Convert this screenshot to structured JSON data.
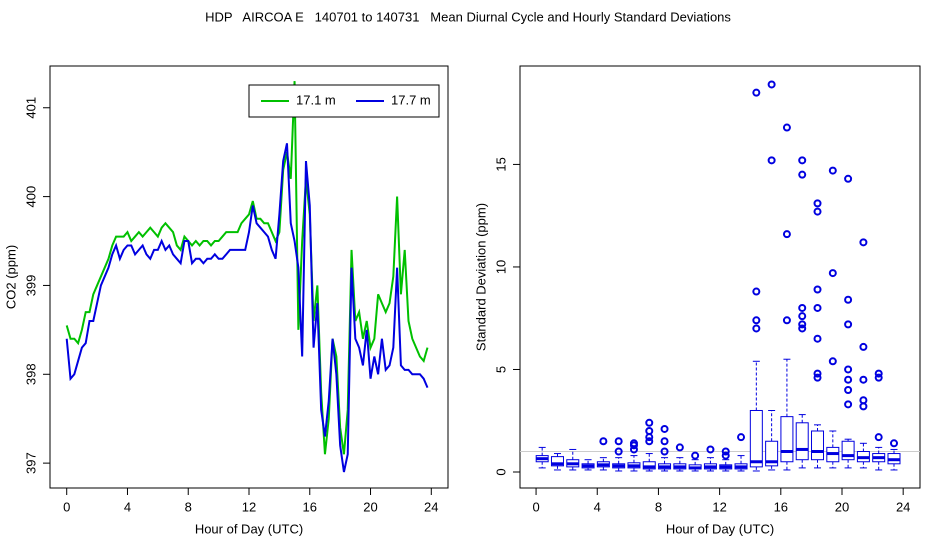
{
  "title": "HDP   AIRCOA E   140701 to 140731   Mean Diurnal Cycle and Hourly Standard Deviations",
  "chart_data": [
    {
      "type": "line",
      "xlabel": "Hour of Day (UTC)",
      "ylabel": "CO2 (ppm)",
      "xlim": [
        -1.1,
        25.1
      ],
      "ylim": [
        396.72,
        401.47
      ],
      "xticks": [
        0,
        4,
        8,
        12,
        16,
        20,
        24
      ],
      "yticks": [
        397,
        398,
        399,
        400,
        401
      ],
      "legend": "top-right",
      "x": [
        0,
        0.25,
        0.5,
        0.75,
        1,
        1.25,
        1.5,
        1.75,
        2,
        2.25,
        2.5,
        2.75,
        3,
        3.25,
        3.5,
        3.75,
        4,
        4.25,
        4.5,
        4.75,
        5,
        5.25,
        5.5,
        5.75,
        6,
        6.25,
        6.5,
        6.75,
        7,
        7.25,
        7.5,
        7.75,
        8,
        8.25,
        8.5,
        8.75,
        9,
        9.25,
        9.5,
        9.75,
        10,
        10.25,
        10.5,
        10.75,
        11,
        11.25,
        11.5,
        11.75,
        12,
        12.25,
        12.5,
        12.75,
        13,
        13.25,
        13.5,
        13.75,
        14,
        14.25,
        14.5,
        14.75,
        15,
        15.25,
        15.5,
        15.75,
        16,
        16.25,
        16.5,
        16.75,
        17,
        17.25,
        17.5,
        17.75,
        18,
        18.25,
        18.5,
        18.75,
        19,
        19.25,
        19.5,
        19.75,
        20,
        20.25,
        20.5,
        20.75,
        21,
        21.25,
        21.5,
        21.75,
        22,
        22.25,
        22.5,
        22.75,
        23,
        23.25,
        23.5,
        23.75
      ],
      "series": [
        {
          "name": "17.1 m",
          "color": "#00c000",
          "values": [
            398.55,
            398.4,
            398.4,
            398.35,
            398.5,
            398.7,
            398.7,
            398.9,
            399.0,
            399.1,
            399.2,
            399.3,
            399.45,
            399.55,
            399.55,
            399.55,
            399.6,
            399.5,
            399.55,
            399.6,
            399.55,
            399.6,
            399.65,
            399.6,
            399.55,
            399.65,
            399.7,
            399.65,
            399.6,
            399.45,
            399.4,
            399.55,
            399.5,
            399.45,
            399.5,
            399.45,
            399.5,
            399.5,
            399.45,
            399.5,
            399.5,
            399.55,
            399.6,
            399.6,
            399.6,
            399.6,
            399.7,
            399.75,
            399.8,
            399.95,
            399.75,
            399.75,
            399.7,
            399.7,
            399.6,
            399.5,
            399.6,
            400.3,
            400.5,
            400.2,
            401.3,
            398.5,
            399.5,
            400.2,
            399.8,
            398.6,
            399.0,
            397.8,
            397.1,
            397.5,
            398.4,
            398.2,
            397.4,
            397.1,
            397.6,
            399.4,
            398.6,
            398.7,
            398.4,
            398.6,
            398.3,
            398.4,
            398.9,
            398.8,
            398.7,
            398.8,
            399.1,
            400.0,
            398.9,
            399.4,
            398.6,
            398.4,
            398.3,
            398.2,
            398.15,
            398.3
          ]
        },
        {
          "name": "17.7 m",
          "color": "#0000e0",
          "values": [
            398.4,
            397.95,
            398.0,
            398.15,
            398.3,
            398.35,
            398.6,
            398.6,
            398.8,
            399.0,
            399.1,
            399.2,
            399.35,
            399.45,
            399.3,
            399.4,
            399.45,
            399.45,
            399.35,
            399.4,
            399.45,
            399.35,
            399.3,
            399.4,
            399.4,
            399.5,
            399.4,
            399.45,
            399.35,
            399.3,
            399.25,
            399.5,
            399.5,
            399.25,
            399.3,
            399.3,
            399.25,
            399.3,
            399.3,
            399.35,
            399.3,
            399.3,
            399.35,
            399.4,
            399.4,
            399.4,
            399.4,
            399.4,
            399.6,
            399.9,
            399.7,
            399.65,
            399.6,
            399.55,
            399.4,
            399.3,
            399.8,
            400.4,
            400.6,
            399.7,
            399.5,
            399.2,
            398.2,
            400.4,
            399.9,
            398.3,
            398.8,
            397.6,
            397.3,
            397.7,
            398.4,
            398.0,
            397.2,
            396.9,
            397.1,
            399.2,
            398.4,
            398.3,
            398.1,
            398.5,
            397.95,
            398.2,
            398.0,
            398.4,
            398.05,
            398.1,
            398.3,
            399.2,
            398.1,
            398.05,
            398.05,
            398.0,
            398.0,
            398.0,
            397.95,
            397.85
          ]
        }
      ]
    },
    {
      "type": "box",
      "xlabel": "Hour of Day (UTC)",
      "ylabel": "Standard Deviation (ppm)",
      "xlim": [
        -1.05,
        25.1
      ],
      "ylim": [
        -0.78,
        19.8
      ],
      "xticks": [
        0,
        4,
        8,
        12,
        16,
        20,
        24
      ],
      "yticks": [
        0,
        5,
        10,
        15
      ],
      "color": "#0000e0",
      "hline": 1,
      "hline_color": "#cccccc",
      "boxes": [
        {
          "x": 0.4,
          "whislo": 0.2,
          "q1": 0.5,
          "med": 0.65,
          "q3": 0.8,
          "whishi": 1.2,
          "outliers": []
        },
        {
          "x": 1.4,
          "whislo": 0.1,
          "q1": 0.3,
          "med": 0.4,
          "q3": 0.75,
          "whishi": 0.9,
          "outliers": []
        },
        {
          "x": 2.4,
          "whislo": 0.1,
          "q1": 0.25,
          "med": 0.4,
          "q3": 0.6,
          "whishi": 1.1,
          "outliers": []
        },
        {
          "x": 3.4,
          "whislo": 0.1,
          "q1": 0.2,
          "med": 0.3,
          "q3": 0.4,
          "whishi": 0.6,
          "outliers": []
        },
        {
          "x": 4.4,
          "whislo": 0.1,
          "q1": 0.25,
          "med": 0.35,
          "q3": 0.5,
          "whishi": 0.7,
          "outliers": [
            1.5
          ]
        },
        {
          "x": 5.4,
          "whislo": 0.05,
          "q1": 0.2,
          "med": 0.3,
          "q3": 0.4,
          "whishi": 0.7,
          "outliers": [
            1.0,
            1.5
          ]
        },
        {
          "x": 6.4,
          "whislo": 0.05,
          "q1": 0.2,
          "med": 0.3,
          "q3": 0.45,
          "whishi": 0.8,
          "outliers": [
            1.1,
            1.3,
            1.4
          ]
        },
        {
          "x": 7.4,
          "whislo": 0.05,
          "q1": 0.15,
          "med": 0.25,
          "q3": 0.5,
          "whishi": 0.9,
          "outliers": [
            1.5,
            1.7,
            2.0,
            2.4
          ]
        },
        {
          "x": 8.4,
          "whislo": 0.05,
          "q1": 0.15,
          "med": 0.25,
          "q3": 0.4,
          "whishi": 0.7,
          "outliers": [
            1.0,
            1.5,
            2.1
          ]
        },
        {
          "x": 9.4,
          "whislo": 0.05,
          "q1": 0.15,
          "med": 0.25,
          "q3": 0.4,
          "whishi": 0.7,
          "outliers": [
            1.2
          ]
        },
        {
          "x": 10.4,
          "whislo": 0.05,
          "q1": 0.15,
          "med": 0.2,
          "q3": 0.35,
          "whishi": 0.6,
          "outliers": [
            0.8
          ]
        },
        {
          "x": 11.4,
          "whislo": 0.05,
          "q1": 0.15,
          "med": 0.25,
          "q3": 0.4,
          "whishi": 0.7,
          "outliers": [
            1.1
          ]
        },
        {
          "x": 12.4,
          "whislo": 0.05,
          "q1": 0.15,
          "med": 0.25,
          "q3": 0.35,
          "whishi": 0.6,
          "outliers": [
            0.8,
            1.0
          ]
        },
        {
          "x": 13.4,
          "whislo": 0.05,
          "q1": 0.15,
          "med": 0.25,
          "q3": 0.4,
          "whishi": 0.8,
          "outliers": [
            1.7
          ]
        },
        {
          "x": 14.4,
          "whislo": 0.05,
          "q1": 0.25,
          "med": 0.5,
          "q3": 3.0,
          "whishi": 5.4,
          "outliers": [
            7.0,
            7.4,
            8.8,
            18.5
          ]
        },
        {
          "x": 15.4,
          "whislo": 0.1,
          "q1": 0.3,
          "med": 0.5,
          "q3": 1.5,
          "whishi": 3.0,
          "outliers": [
            15.2,
            18.9
          ]
        },
        {
          "x": 16.4,
          "whislo": 0.1,
          "q1": 0.5,
          "med": 1.0,
          "q3": 2.7,
          "whishi": 5.5,
          "outliers": [
            7.4,
            11.6,
            16.8
          ]
        },
        {
          "x": 17.4,
          "whislo": 0.2,
          "q1": 0.6,
          "med": 1.1,
          "q3": 2.4,
          "whishi": 2.8,
          "outliers": [
            7.0,
            7.2,
            7.6,
            8.0,
            14.5,
            15.2
          ]
        },
        {
          "x": 18.4,
          "whislo": 0.2,
          "q1": 0.6,
          "med": 1.0,
          "q3": 2.0,
          "whishi": 2.3,
          "outliers": [
            4.6,
            4.8,
            6.5,
            8.0,
            8.9,
            12.7,
            13.1
          ]
        },
        {
          "x": 19.4,
          "whislo": 0.2,
          "q1": 0.5,
          "med": 0.9,
          "q3": 1.2,
          "whishi": 2.0,
          "outliers": [
            5.4,
            9.7,
            14.7
          ]
        },
        {
          "x": 20.4,
          "whislo": 0.2,
          "q1": 0.6,
          "med": 0.8,
          "q3": 1.5,
          "whishi": 1.6,
          "outliers": [
            3.3,
            4.0,
            4.5,
            5.0,
            7.2,
            8.4,
            14.3
          ]
        },
        {
          "x": 21.4,
          "whislo": 0.2,
          "q1": 0.5,
          "med": 0.7,
          "q3": 1.0,
          "whishi": 1.4,
          "outliers": [
            3.2,
            3.5,
            4.5,
            6.1,
            11.2
          ]
        },
        {
          "x": 22.4,
          "whislo": 0.1,
          "q1": 0.5,
          "med": 0.7,
          "q3": 0.9,
          "whishi": 1.2,
          "outliers": [
            1.7,
            4.6,
            4.8
          ]
        },
        {
          "x": 23.4,
          "whislo": 0.1,
          "q1": 0.4,
          "med": 0.6,
          "q3": 0.9,
          "whishi": 1.1,
          "outliers": [
            1.4
          ]
        }
      ]
    }
  ]
}
